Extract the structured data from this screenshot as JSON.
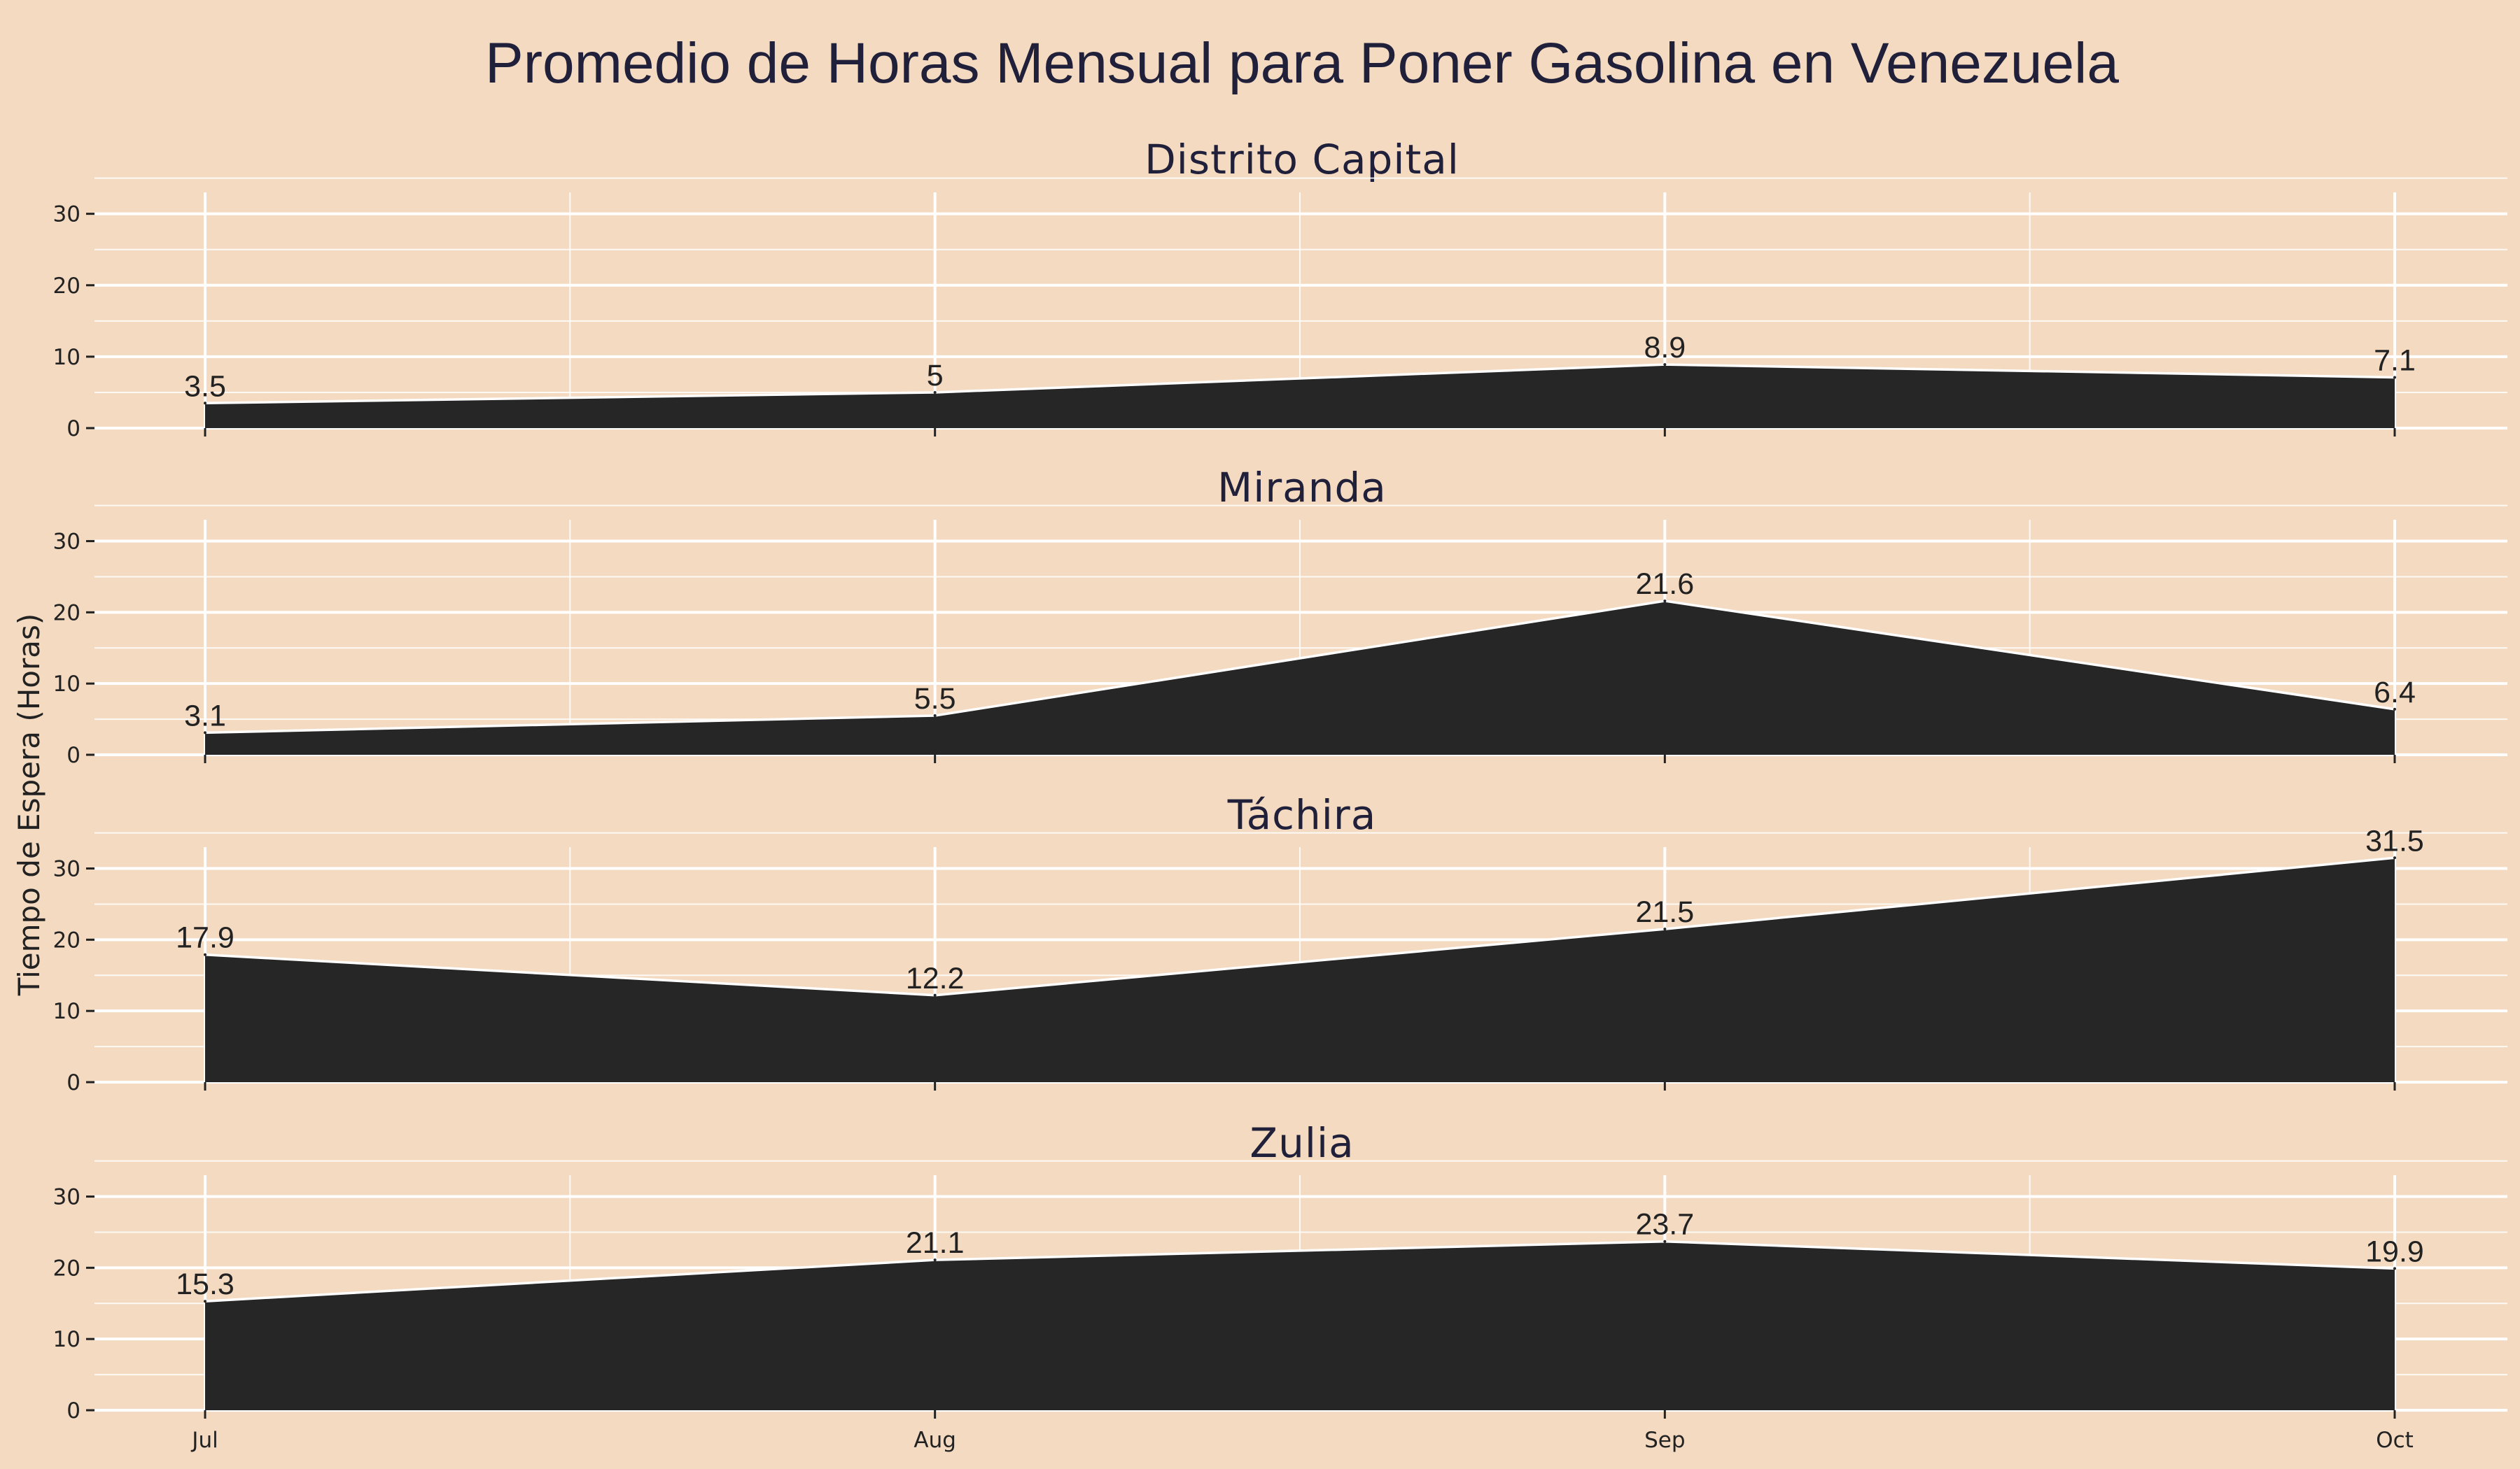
{
  "chart_data": {
    "type": "area",
    "title": "Promedio de Horas Mensual para Poner Gasolina en Venezuela",
    "xlabel": "",
    "ylabel": "Tiempo de Espera (Horas)",
    "categories": [
      "Jul",
      "Aug",
      "Sep",
      "Oct"
    ],
    "y_ticks": [
      0,
      10,
      20,
      30
    ],
    "ylim": [
      0,
      33
    ],
    "grid": true,
    "facets": [
      {
        "name": "Distrito Capital",
        "values": [
          3.5,
          5,
          8.9,
          7.1
        ],
        "labels": [
          "3.5",
          "5",
          "8.9",
          "7.1"
        ]
      },
      {
        "name": "Miranda",
        "values": [
          3.1,
          5.5,
          21.6,
          6.4
        ],
        "labels": [
          "3.1",
          "5.5",
          "21.6",
          "6.4"
        ]
      },
      {
        "name": "Táchira",
        "values": [
          17.9,
          12.2,
          21.5,
          31.5
        ],
        "labels": [
          "17.9",
          "12.2",
          "21.5",
          "31.5"
        ]
      },
      {
        "name": "Zulia",
        "values": [
          15.3,
          21.1,
          23.7,
          19.9
        ],
        "labels": [
          "15.3",
          "21.1",
          "23.7",
          "19.9"
        ]
      }
    ],
    "colors": {
      "area": "#262626",
      "background": "#f3dac1",
      "grid": "#ffffff",
      "text": "#20203a"
    }
  }
}
